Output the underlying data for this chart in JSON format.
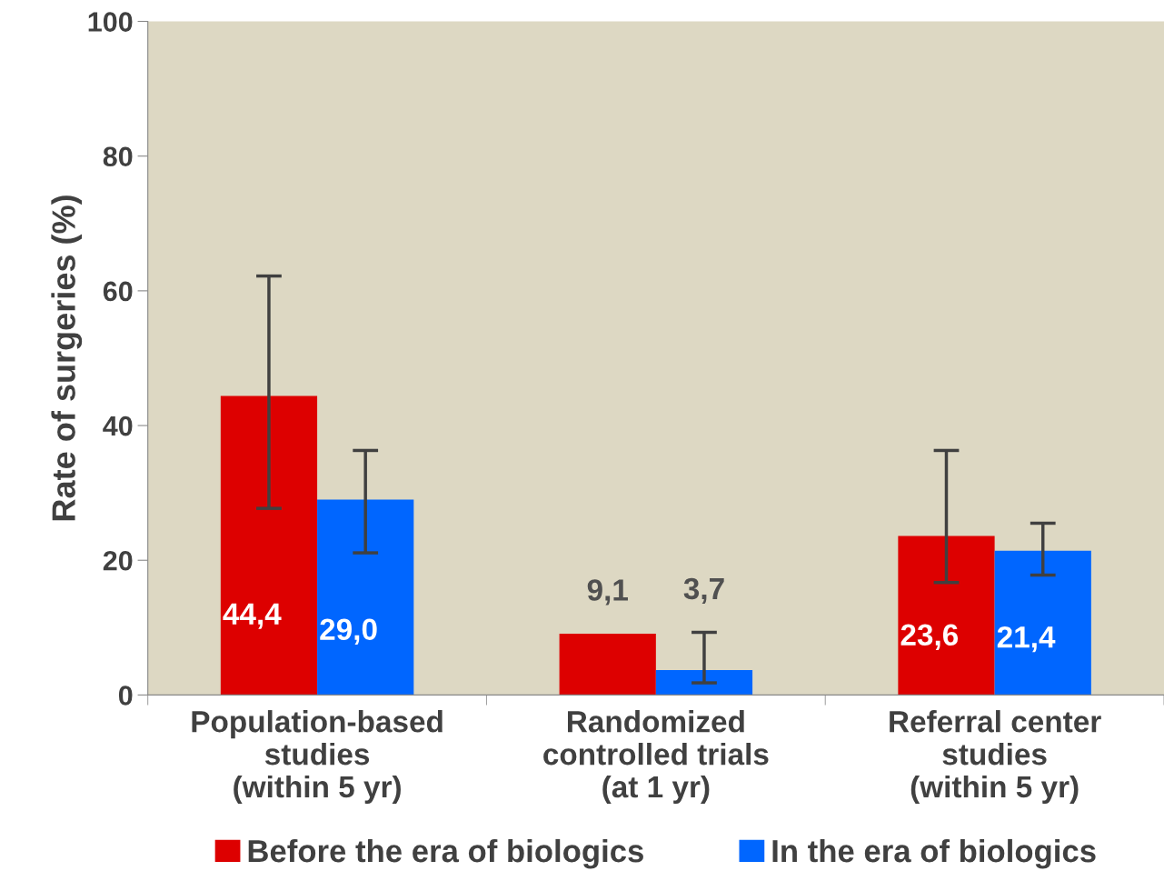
{
  "chart_data": {
    "type": "bar",
    "ylabel": "Rate of surgeries (%)",
    "categories": [
      "Population-based\nstudies\n(within 5 yr)",
      "Randomized\ncontrolled trials\n(at 1 yr)",
      "Referral center\nstudies\n(within 5 yr)"
    ],
    "series": [
      {
        "name": "Before the era of biologics",
        "color": "#dd0000",
        "values": [
          44.4,
          9.1,
          23.6
        ],
        "errors": [
          [
            27.7,
            62.2
          ],
          null,
          [
            16.7,
            36.3
          ]
        ],
        "value_labels": [
          "44,4",
          "9,1",
          "23,6"
        ]
      },
      {
        "name": "In the era of biologics",
        "color": "#0066ff",
        "values": [
          29.0,
          3.7,
          21.4
        ],
        "errors": [
          [
            21.1,
            36.3
          ],
          [
            1.8,
            9.3
          ],
          [
            17.8,
            25.5
          ]
        ],
        "value_labels": [
          "29,0",
          "3,7",
          "21,4"
        ]
      }
    ],
    "ylim": [
      0,
      100
    ],
    "yticks": [
      0,
      20,
      40,
      60,
      80,
      100
    ],
    "grid": false,
    "legend": "bottom"
  }
}
